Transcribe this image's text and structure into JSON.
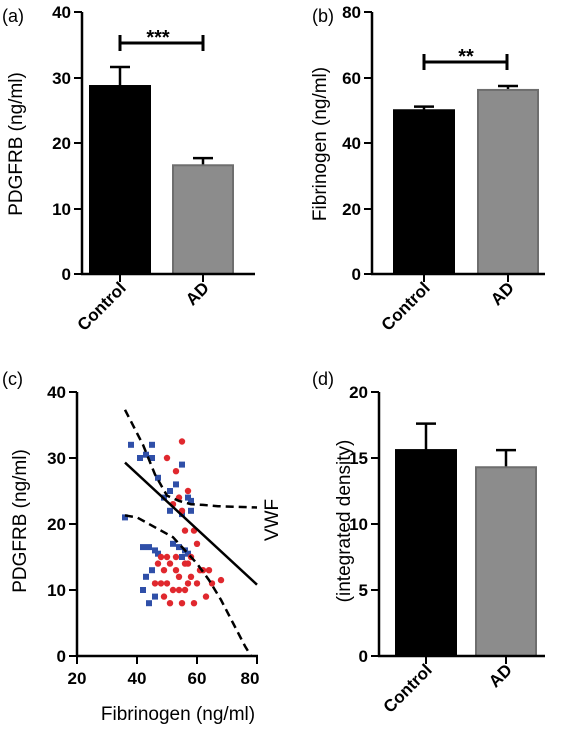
{
  "chart_data": [
    {
      "panel": "(a)",
      "type": "bar",
      "categories": [
        "Control",
        "AD"
      ],
      "values": [
        28.7,
        16.6
      ],
      "errors": [
        2.9,
        1.1
      ],
      "colors": [
        "#000000",
        "#8c8c8c"
      ],
      "ylabel": "PDGFRB (ng/ml)",
      "ylim": [
        0,
        40
      ],
      "yticks": [
        "0",
        "10",
        "20",
        "30",
        "40"
      ],
      "significance": "***"
    },
    {
      "panel": "(b)",
      "type": "bar",
      "categories": [
        "Control",
        "AD"
      ],
      "values": [
        50,
        56.2
      ],
      "errors": [
        1.1,
        1.2
      ],
      "colors": [
        "#000000",
        "#8c8c8c"
      ],
      "ylabel": "Fibrinogen (ng/ml)",
      "ylim": [
        0,
        80
      ],
      "yticks": [
        "0",
        "20",
        "40",
        "60",
        "80"
      ],
      "significance": "**"
    },
    {
      "panel": "(c)",
      "type": "scatter",
      "xlabel": "Fibrinogen (ng/ml)",
      "ylabel": "PDGFRB (ng/ml)",
      "xlim": [
        20,
        80
      ],
      "ylim": [
        0,
        40
      ],
      "xticks": [
        "20",
        "40",
        "60",
        "80"
      ],
      "yticks": [
        "0",
        "10",
        "20",
        "30",
        "40"
      ],
      "annotation": "VWF",
      "colors": {
        "blue": "#2f4fa8",
        "red": "#e0282e"
      },
      "series": [
        {
          "marker": "square",
          "color": "blue",
          "points": [
            [
              38,
              32
            ],
            [
              41,
              30
            ],
            [
              43,
              30.5
            ],
            [
              45,
              32
            ],
            [
              45,
              30
            ],
            [
              47,
              27
            ],
            [
              49,
              24
            ],
            [
              51,
              22
            ],
            [
              55,
              29
            ],
            [
              53,
              26
            ],
            [
              57,
              24
            ],
            [
              58,
              22
            ],
            [
              55,
              21.5
            ],
            [
              42,
              16.5
            ],
            [
              44,
              16.5
            ],
            [
              46,
              16
            ],
            [
              47,
              15.5
            ],
            [
              45,
              13
            ],
            [
              43,
              12
            ],
            [
              42,
              10
            ],
            [
              46,
              9
            ],
            [
              44,
              8
            ],
            [
              52,
              17
            ],
            [
              54,
              16.5
            ],
            [
              56,
              16
            ],
            [
              57,
              15.5
            ],
            [
              55,
              15
            ],
            [
              51,
              25
            ],
            [
              58,
              23.5
            ],
            [
              36,
              21
            ]
          ]
        },
        {
          "marker": "circle",
          "color": "red",
          "points": [
            [
              55,
              32.5
            ],
            [
              50,
              30
            ],
            [
              53,
              28
            ],
            [
              54,
              24
            ],
            [
              55,
              22
            ],
            [
              52,
              23
            ],
            [
              57,
              25
            ],
            [
              60,
              17
            ],
            [
              59,
              19
            ],
            [
              56,
              19
            ],
            [
              57,
              14
            ],
            [
              53,
              15
            ],
            [
              51,
              14
            ],
            [
              49,
              13
            ],
            [
              48,
              11
            ],
            [
              50,
              11
            ],
            [
              52,
              10
            ],
            [
              54,
              12
            ],
            [
              56,
              10
            ],
            [
              58,
              12
            ],
            [
              60,
              11
            ],
            [
              62,
              13
            ],
            [
              65,
              11
            ],
            [
              68,
              11.5
            ],
            [
              63,
              9
            ],
            [
              59,
              8
            ],
            [
              55,
              8
            ],
            [
              51,
              8
            ],
            [
              49,
              9
            ],
            [
              47,
              14
            ],
            [
              50,
              15
            ],
            [
              56,
              14
            ],
            [
              58,
              15
            ],
            [
              61,
              13
            ],
            [
              64,
              13
            ],
            [
              53,
              13
            ],
            [
              57,
              11
            ],
            [
              54,
              10
            ],
            [
              46,
              11
            ],
            [
              48,
              15
            ]
          ]
        }
      ],
      "fit_line": [
        [
          36,
          29.3
        ],
        [
          80,
          10.8
        ]
      ],
      "ci_upper": [
        [
          36,
          37.3
        ],
        [
          42,
          32
        ],
        [
          46,
          27.5
        ],
        [
          50,
          24.3
        ],
        [
          54,
          23.5
        ],
        [
          58,
          23
        ],
        [
          62,
          22.9
        ],
        [
          67,
          22.7
        ],
        [
          73,
          22.6
        ],
        [
          80,
          22.5
        ]
      ],
      "ci_lower": [
        [
          36,
          21.3
        ],
        [
          40,
          21
        ],
        [
          46,
          19.5
        ],
        [
          52,
          18
        ],
        [
          56,
          16
        ],
        [
          60,
          14
        ],
        [
          64,
          11.5
        ],
        [
          68,
          8.5
        ],
        [
          72,
          5
        ],
        [
          76,
          1.5
        ],
        [
          78,
          0
        ]
      ]
    },
    {
      "panel": "(d)",
      "type": "bar",
      "categories": [
        "Control",
        "AD"
      ],
      "values": [
        15.6,
        14.3
      ],
      "errors": [
        2.0,
        1.3
      ],
      "colors": [
        "#000000",
        "#8c8c8c"
      ],
      "ylabel": "(integrated density)",
      "ylim": [
        0,
        20
      ],
      "yticks": [
        "0",
        "5",
        "10",
        "15",
        "20"
      ]
    }
  ]
}
